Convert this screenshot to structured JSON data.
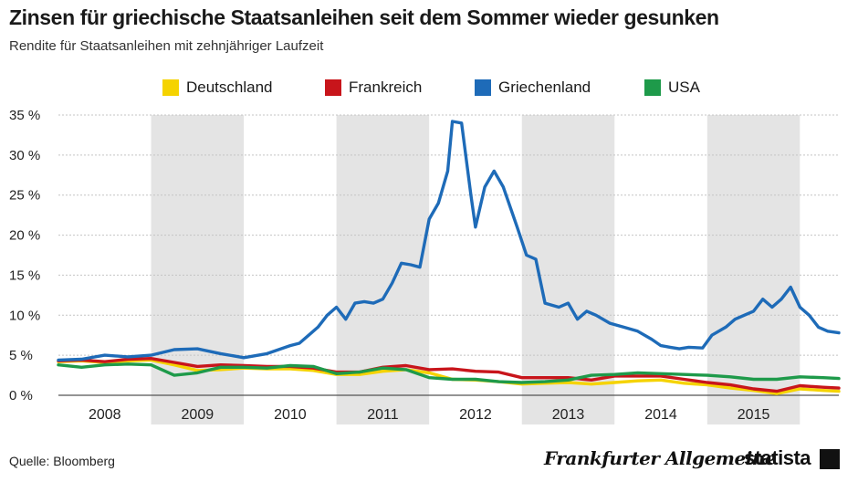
{
  "header": {
    "title": "Zinsen für griechische Staatsanleihen seit dem Sommer wieder gesunken",
    "subtitle": "Rendite für Staatsanleihen mit zehnjähriger Laufzeit"
  },
  "footer": {
    "source": "Quelle: Bloomberg",
    "publisher": "Frankfurter Allgemeine",
    "brand": "statista"
  },
  "chart_data": {
    "type": "line",
    "title": "Zinsen für griechische Staatsanleihen seit dem Sommer wieder gesunken",
    "subtitle": "Rendite für Staatsanleihen mit zehnjähriger Laufzeit",
    "xlabel": "",
    "ylabel": "",
    "ylim": [
      0,
      35
    ],
    "xlim": [
      2007.5,
      2015.92
    ],
    "y_ticks": [
      0,
      5,
      10,
      15,
      20,
      25,
      30,
      35
    ],
    "y_tick_labels": [
      "0 %",
      "5 %",
      "10 %",
      "15 %",
      "20 %",
      "25 %",
      "30 %",
      "35 %"
    ],
    "year_labels": [
      "2008",
      "2009",
      "2010",
      "2011",
      "2012",
      "2013",
      "2014",
      "2015"
    ],
    "shaded_years": [
      "2009",
      "2011",
      "2013",
      "2015"
    ],
    "grid": true,
    "legend_position": "top",
    "series": [
      {
        "name": "Deutschland",
        "color": "#f5d300",
        "x": [
          2007.5,
          2007.75,
          2008.0,
          2008.25,
          2008.5,
          2008.75,
          2009.0,
          2009.25,
          2009.5,
          2009.75,
          2010.0,
          2010.25,
          2010.5,
          2010.75,
          2011.0,
          2011.25,
          2011.5,
          2011.75,
          2012.0,
          2012.25,
          2012.5,
          2012.75,
          2013.0,
          2013.25,
          2013.5,
          2013.75,
          2014.0,
          2014.25,
          2014.5,
          2014.75,
          2015.0,
          2015.25,
          2015.5,
          2015.75,
          2015.92
        ],
        "values": [
          4.2,
          4.3,
          4.1,
          4.3,
          4.4,
          3.8,
          3.1,
          3.2,
          3.4,
          3.3,
          3.3,
          3.1,
          2.6,
          2.6,
          3.0,
          3.2,
          2.8,
          2.0,
          1.9,
          1.7,
          1.4,
          1.5,
          1.6,
          1.4,
          1.6,
          1.8,
          1.9,
          1.5,
          1.3,
          0.9,
          0.6,
          0.2,
          0.8,
          0.6,
          0.5
        ]
      },
      {
        "name": "Frankreich",
        "color": "#c8151b",
        "x": [
          2007.5,
          2007.75,
          2008.0,
          2008.25,
          2008.5,
          2008.75,
          2009.0,
          2009.25,
          2009.5,
          2009.75,
          2010.0,
          2010.25,
          2010.5,
          2010.75,
          2011.0,
          2011.25,
          2011.5,
          2011.75,
          2012.0,
          2012.25,
          2012.5,
          2012.75,
          2013.0,
          2013.25,
          2013.5,
          2013.75,
          2014.0,
          2014.25,
          2014.5,
          2014.75,
          2015.0,
          2015.25,
          2015.5,
          2015.75,
          2015.92
        ],
        "values": [
          4.3,
          4.4,
          4.2,
          4.5,
          4.6,
          4.1,
          3.6,
          3.8,
          3.7,
          3.6,
          3.6,
          3.4,
          2.9,
          2.9,
          3.5,
          3.7,
          3.2,
          3.3,
          3.0,
          2.9,
          2.2,
          2.2,
          2.2,
          1.9,
          2.4,
          2.4,
          2.4,
          2.0,
          1.6,
          1.3,
          0.8,
          0.5,
          1.2,
          1.0,
          0.9
        ]
      },
      {
        "name": "Griechenland",
        "color": "#1e6bb8",
        "x": [
          2007.5,
          2007.75,
          2008.0,
          2008.25,
          2008.5,
          2008.75,
          2009.0,
          2009.25,
          2009.5,
          2009.75,
          2010.0,
          2010.1,
          2010.2,
          2010.3,
          2010.4,
          2010.5,
          2010.6,
          2010.7,
          2010.8,
          2010.9,
          2011.0,
          2011.1,
          2011.2,
          2011.3,
          2011.4,
          2011.5,
          2011.6,
          2011.7,
          2011.75,
          2011.85,
          2011.95,
          2012.0,
          2012.1,
          2012.2,
          2012.3,
          2012.45,
          2012.55,
          2012.65,
          2012.75,
          2012.9,
          2013.0,
          2013.1,
          2013.2,
          2013.3,
          2013.45,
          2013.6,
          2013.75,
          2013.9,
          2014.0,
          2014.1,
          2014.2,
          2014.3,
          2014.45,
          2014.55,
          2014.7,
          2014.8,
          2014.9,
          2015.0,
          2015.1,
          2015.2,
          2015.3,
          2015.4,
          2015.5,
          2015.6,
          2015.7,
          2015.8,
          2015.92
        ],
        "values": [
          4.4,
          4.5,
          5.0,
          4.8,
          5.0,
          5.7,
          5.8,
          5.2,
          4.7,
          5.2,
          6.2,
          6.5,
          7.5,
          8.5,
          10.0,
          11.0,
          9.5,
          11.5,
          11.7,
          11.5,
          12.0,
          14.0,
          16.5,
          16.3,
          16.0,
          22.0,
          24.0,
          28.0,
          34.2,
          34.0,
          25.0,
          21.0,
          26.0,
          28.0,
          26.0,
          21.0,
          17.5,
          17.0,
          11.5,
          11.0,
          11.5,
          9.5,
          10.5,
          10.0,
          9.0,
          8.5,
          8.0,
          7.0,
          6.2,
          6.0,
          5.8,
          6.0,
          5.9,
          7.5,
          8.5,
          9.5,
          10.0,
          10.5,
          12.0,
          11.0,
          12.0,
          13.5,
          11.0,
          10.0,
          8.5,
          8.0,
          7.8
        ]
      },
      {
        "name": "USA",
        "color": "#1e9a4a",
        "x": [
          2007.5,
          2007.75,
          2008.0,
          2008.25,
          2008.5,
          2008.75,
          2009.0,
          2009.25,
          2009.5,
          2009.75,
          2010.0,
          2010.25,
          2010.5,
          2010.75,
          2011.0,
          2011.25,
          2011.5,
          2011.75,
          2012.0,
          2012.25,
          2012.5,
          2012.75,
          2013.0,
          2013.25,
          2013.5,
          2013.75,
          2014.0,
          2014.25,
          2014.5,
          2014.75,
          2015.0,
          2015.25,
          2015.5,
          2015.75,
          2015.92
        ],
        "values": [
          3.8,
          3.5,
          3.8,
          3.9,
          3.8,
          2.5,
          2.8,
          3.5,
          3.5,
          3.4,
          3.7,
          3.6,
          2.7,
          2.9,
          3.4,
          3.2,
          2.2,
          2.0,
          2.0,
          1.7,
          1.6,
          1.7,
          1.9,
          2.5,
          2.6,
          2.8,
          2.7,
          2.6,
          2.5,
          2.3,
          2.0,
          2.0,
          2.3,
          2.2,
          2.1
        ]
      }
    ]
  }
}
